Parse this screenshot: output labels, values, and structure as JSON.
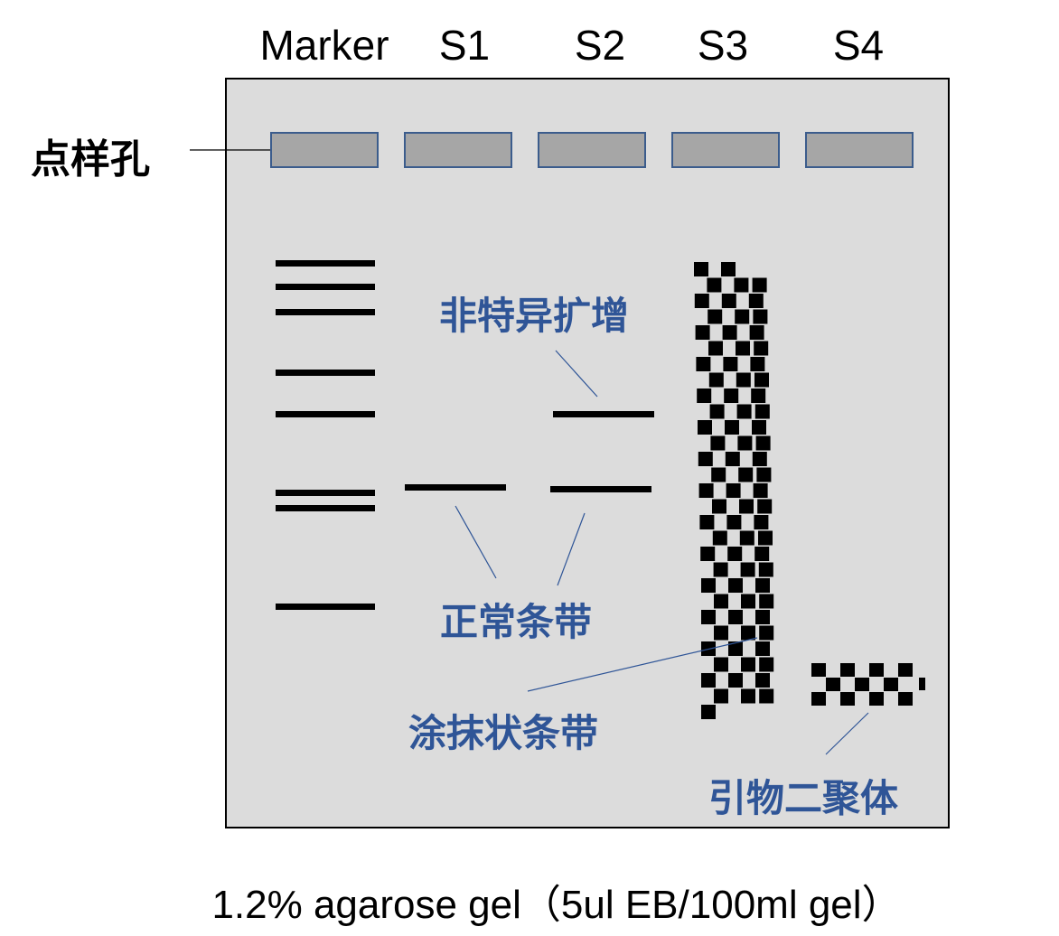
{
  "lanes": [
    "Marker",
    "S1",
    "S2",
    "S3",
    "S4"
  ],
  "labels": {
    "well": "点样孔",
    "nonspecific": "非特异扩增",
    "normal": "正常条带",
    "smear": "涂抹状条带",
    "primer_dimer": "引物二聚体"
  },
  "caption": "1.2% agarose gel（5ul EB/100ml gel）",
  "colors": {
    "gel_background": "#dcdcdc",
    "well_fill": "#a6a6a6",
    "well_border": "#3b5c8c",
    "annotation_blue": "#2f5597",
    "band": "#000000"
  }
}
